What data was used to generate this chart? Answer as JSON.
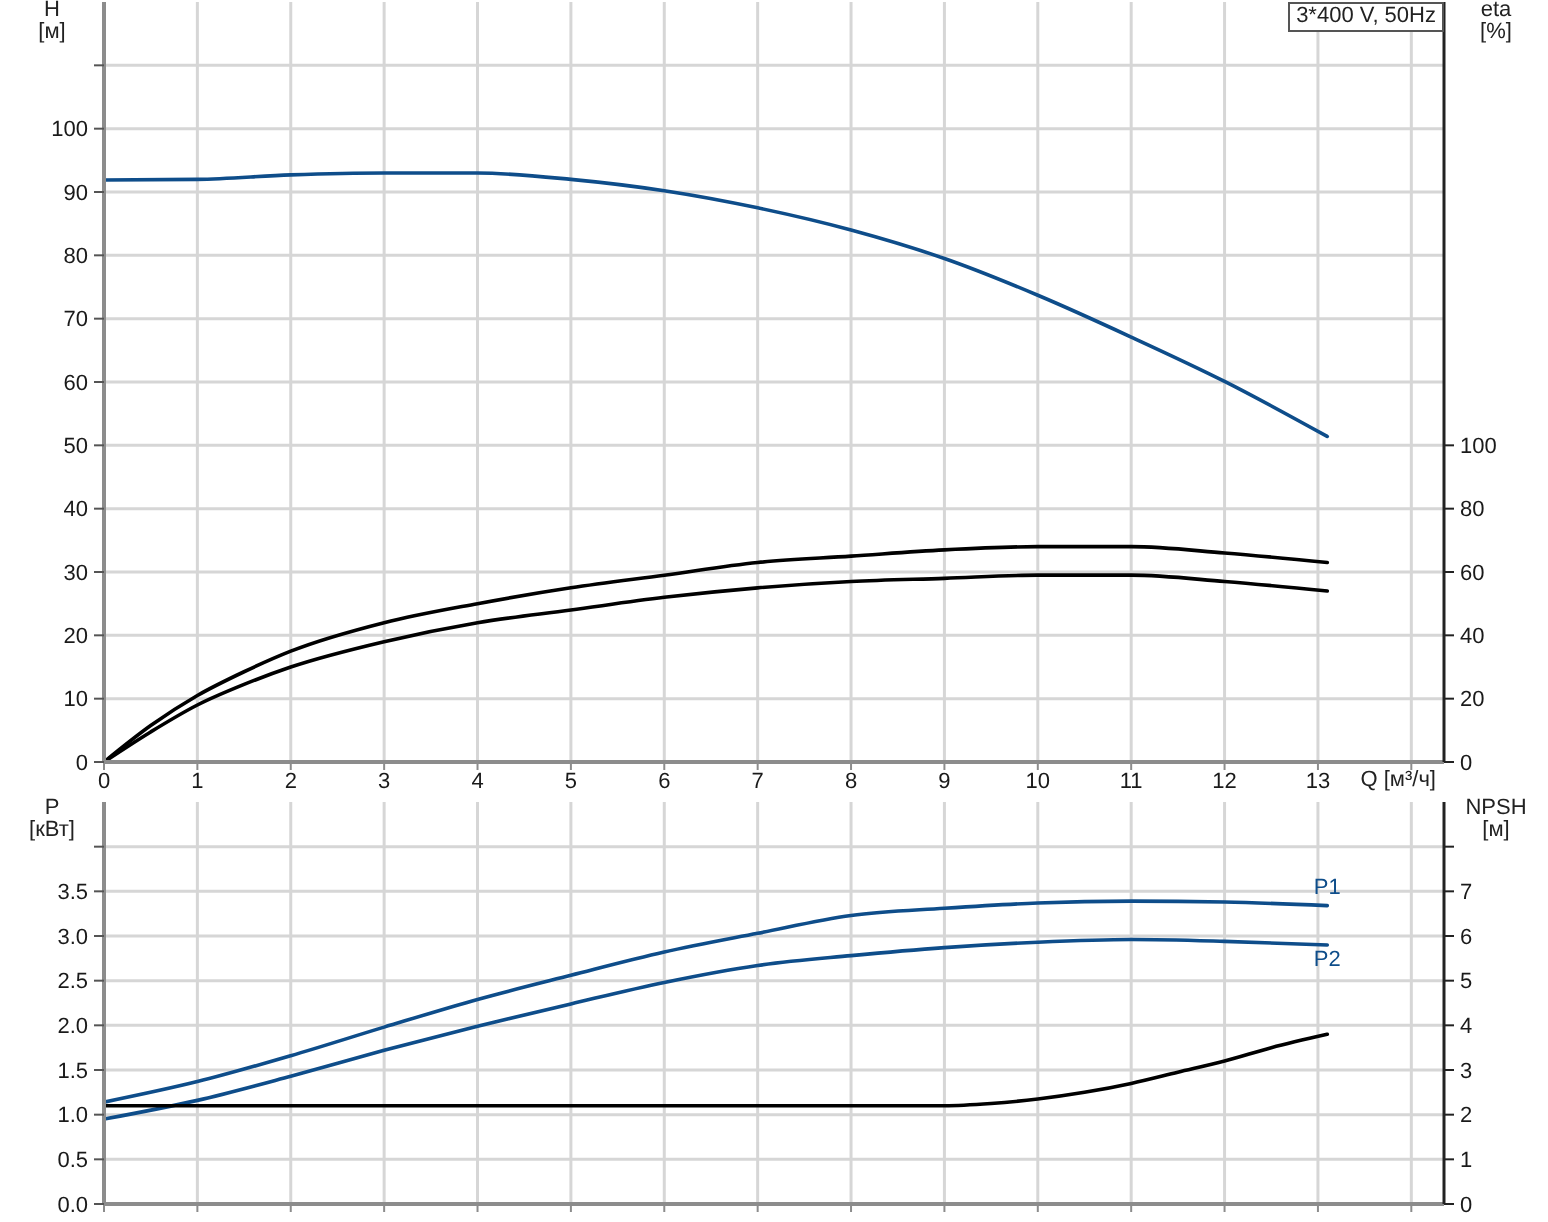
{
  "chart_data": [
    {
      "type": "line",
      "xlabel": "Q [м³/ч]",
      "ylabel": "H [м]",
      "y2label": "eta [%]",
      "annotations": [
        "3*400 V, 50Hz"
      ],
      "xlim": [
        0,
        14.35
      ],
      "xticks": [
        0,
        1,
        2,
        3,
        4,
        5,
        6,
        7,
        8,
        9,
        10,
        11,
        12,
        13,
        {
          "value": 14,
          "label": null
        }
      ],
      "ylim": [
        0,
        120
      ],
      "yticks": [
        0,
        10,
        20,
        30,
        40,
        50,
        60,
        70,
        80,
        90,
        100,
        {
          "value": 110,
          "label": null
        }
      ],
      "y2lim": [
        0,
        240
      ],
      "y2ticks": [
        0,
        20,
        40,
        60,
        80,
        100
      ],
      "grid": true,
      "marker": "none",
      "series": [
        {
          "color": "#0e4d8a",
          "x": [
            0,
            1,
            2,
            3,
            4,
            5,
            6,
            7,
            8,
            9,
            10,
            11,
            12,
            13.1
          ],
          "values": [
            91.9,
            92.0,
            92.7,
            93.0,
            93.0,
            92.0,
            90.2,
            87.5,
            84.0,
            79.5,
            73.7,
            67.1,
            60.1,
            51.4
          ]
        },
        {
          "color": "#000000",
          "axis": "y2",
          "x": [
            0,
            0.5,
            1,
            1.5,
            2,
            3,
            4,
            5,
            6,
            7,
            8,
            9,
            10,
            11,
            12,
            13.1
          ],
          "values": [
            0,
            11.5,
            21,
            28.5,
            35,
            44,
            50,
            55,
            59,
            63,
            65,
            67,
            68,
            68,
            66,
            63
          ]
        },
        {
          "color": "#000000",
          "axis": "y2",
          "x": [
            0,
            0.5,
            1,
            1.5,
            2,
            3,
            4,
            5,
            6,
            7,
            8,
            9,
            10,
            11,
            12,
            13.1
          ],
          "values": [
            0,
            9.5,
            18,
            24.5,
            30,
            38,
            44,
            48,
            52,
            55,
            57,
            58,
            59,
            59,
            57,
            54
          ]
        }
      ]
    },
    {
      "type": "line",
      "ylabel": "P [кВт]",
      "y2label": "NPSH [м]",
      "tick_labels": "y",
      "xlim": [
        0,
        14.35
      ],
      "xticks": [
        0,
        1,
        2,
        3,
        4,
        5,
        6,
        7,
        8,
        9,
        10,
        11,
        12,
        13,
        {
          "value": 14,
          "label": null
        }
      ],
      "ylim": [
        0,
        4.5
      ],
      "yticks": [
        {
          "value": 0,
          "label": "0.0"
        },
        0.5,
        {
          "value": 1,
          "label": "1.0"
        },
        1.5,
        {
          "value": 2,
          "label": "2.0"
        },
        2.5,
        {
          "value": 3,
          "label": "3.0"
        },
        3.5,
        {
          "value": 4,
          "label": null
        }
      ],
      "y2lim": [
        0,
        9
      ],
      "y2ticks": [
        0,
        1,
        2,
        3,
        4,
        5,
        6,
        7,
        {
          "value": 8,
          "label": null
        }
      ],
      "grid": true,
      "marker": "none",
      "series": [
        {
          "name": "P1",
          "color": "#0e4d8a",
          "x": [
            0,
            1,
            2,
            3,
            4,
            5,
            6,
            7,
            8,
            9,
            10,
            11,
            12,
            13.1
          ],
          "values": [
            1.14,
            1.37,
            1.66,
            1.98,
            2.29,
            2.56,
            2.82,
            3.03,
            3.23,
            3.31,
            3.37,
            3.39,
            3.38,
            3.34
          ]
        },
        {
          "name": "P2",
          "color": "#0e4d8a",
          "x": [
            0,
            1,
            2,
            3,
            4,
            5,
            6,
            7,
            8,
            9,
            10,
            11,
            12,
            13.1
          ],
          "values": [
            0.95,
            1.16,
            1.43,
            1.72,
            1.99,
            2.24,
            2.48,
            2.67,
            2.78,
            2.87,
            2.93,
            2.96,
            2.94,
            2.9
          ]
        },
        {
          "color": "#000000",
          "axis": "y2",
          "x": [
            0,
            2,
            4,
            6,
            8,
            9,
            9.5,
            10,
            10.5,
            11,
            11.5,
            12,
            12.5,
            13.1
          ],
          "values": [
            2.2,
            2.2,
            2.2,
            2.2,
            2.2,
            2.2,
            2.25,
            2.35,
            2.5,
            2.7,
            2.95,
            3.2,
            3.5,
            3.8
          ]
        }
      ]
    }
  ]
}
